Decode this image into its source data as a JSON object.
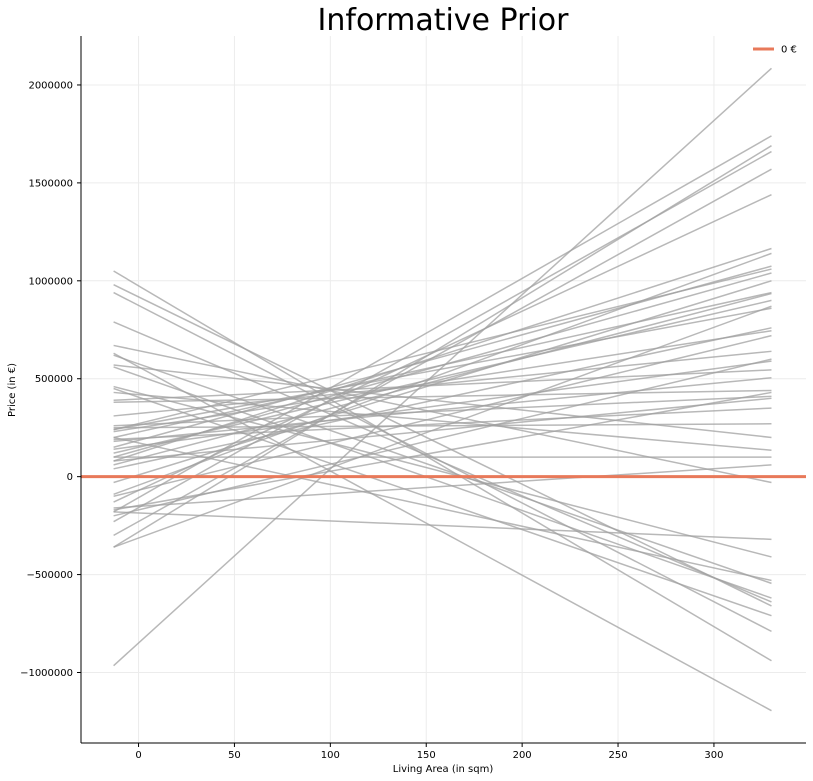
{
  "chart_data": {
    "type": "line",
    "title": "Informative Prior",
    "xlabel": "Living Area (in sqm)",
    "ylabel": "Price (in €)",
    "xlim": [
      -30,
      348
    ],
    "ylim": [
      -1360000,
      2250000
    ],
    "x_ticks": [
      0,
      50,
      100,
      150,
      200,
      250,
      300
    ],
    "y_ticks": [
      -1000000,
      -500000,
      0,
      500000,
      1000000,
      1500000,
      2000000
    ],
    "y_tick_labels": [
      "−1000000",
      "−500000",
      "0",
      "500000",
      "1000000",
      "1500000",
      "2000000"
    ],
    "x_tick_labels": [
      "0",
      "50",
      "100",
      "150",
      "200",
      "250",
      "300"
    ],
    "grid": true,
    "legend_position": "top-right",
    "line_x_range": [
      -13,
      330
    ],
    "reference_line": {
      "name": "0 €",
      "y": 0,
      "color": "#e8795a"
    },
    "sample_line_color": "#a0a0a0",
    "prior_lines": [
      [
        -965000,
        2085000
      ],
      [
        -180000,
        1740000
      ],
      [
        -360000,
        1690000
      ],
      [
        -230000,
        1660000
      ],
      [
        -300000,
        1570000
      ],
      [
        -130000,
        1440000
      ],
      [
        80000,
        1165000
      ],
      [
        -90000,
        1140000
      ],
      [
        150000,
        1075000
      ],
      [
        240000,
        1060000
      ],
      [
        100000,
        1040000
      ],
      [
        -30000,
        1000000
      ],
      [
        200000,
        940000
      ],
      [
        60000,
        935000
      ],
      [
        120000,
        900000
      ],
      [
        -360000,
        870000
      ],
      [
        240000,
        860000
      ],
      [
        40000,
        760000
      ],
      [
        230000,
        745000
      ],
      [
        -100000,
        720000
      ],
      [
        310000,
        640000
      ],
      [
        -200000,
        600000
      ],
      [
        140000,
        590000
      ],
      [
        390000,
        545000
      ],
      [
        180000,
        505000
      ],
      [
        380000,
        440000
      ],
      [
        -170000,
        430000
      ],
      [
        260000,
        410000
      ],
      [
        80000,
        400000
      ],
      [
        190000,
        350000
      ],
      [
        250000,
        270000
      ],
      [
        570000,
        200000
      ],
      [
        430000,
        135000
      ],
      [
        100000,
        100000
      ],
      [
        -160000,
        60000
      ],
      [
        670000,
        -30000
      ],
      [
        -180000,
        -320000
      ],
      [
        460000,
        -410000
      ],
      [
        200000,
        -530000
      ],
      [
        620000,
        -545000
      ],
      [
        560000,
        -620000
      ],
      [
        790000,
        -640000
      ],
      [
        980000,
        -660000
      ],
      [
        450000,
        -710000
      ],
      [
        940000,
        -790000
      ],
      [
        1050000,
        -940000
      ],
      [
        630000,
        -1195000
      ]
    ]
  }
}
